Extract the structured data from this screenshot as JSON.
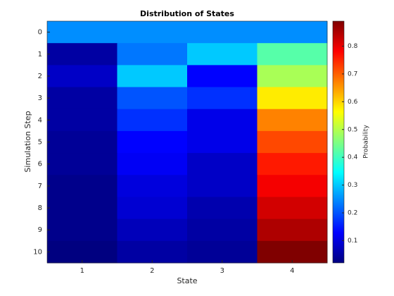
{
  "chart_data": {
    "type": "heatmap",
    "title": "Distribution of States",
    "x_label": "State",
    "y_label": "Simulation Step",
    "colorbar_label": "Probability",
    "categories": [
      1,
      2,
      3,
      4
    ],
    "y_categories": [
      0,
      1,
      2,
      3,
      4,
      5,
      6,
      7,
      8,
      9,
      10
    ],
    "values": [
      [
        0.25,
        0.25,
        0.25,
        0.25
      ],
      [
        0.05,
        0.23,
        0.3,
        0.42
      ],
      [
        0.08,
        0.3,
        0.13,
        0.49
      ],
      [
        0.05,
        0.2,
        0.17,
        0.58
      ],
      [
        0.05,
        0.17,
        0.11,
        0.67
      ],
      [
        0.04,
        0.13,
        0.11,
        0.72
      ],
      [
        0.04,
        0.12,
        0.08,
        0.76
      ],
      [
        0.03,
        0.1,
        0.08,
        0.79
      ],
      [
        0.03,
        0.09,
        0.06,
        0.82
      ],
      [
        0.03,
        0.07,
        0.05,
        0.85
      ],
      [
        0.02,
        0.05,
        0.04,
        0.89
      ]
    ],
    "colormap": "jet",
    "clim": [
      0.02,
      0.89
    ],
    "cticks": [
      0.1,
      0.2,
      0.3,
      0.4,
      0.5,
      0.6,
      0.7,
      0.8
    ]
  }
}
